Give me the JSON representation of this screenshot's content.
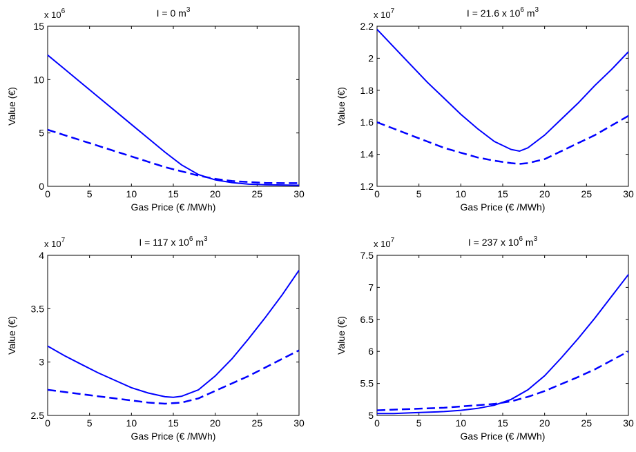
{
  "chart_data": [
    {
      "type": "line",
      "title": "I = 0 m",
      "title_sup": "3",
      "xlabel": "Gas Price (€ /MWh)",
      "ylabel": "Value (€)",
      "exponent_label": "x 10",
      "exponent_sup": "6",
      "scale": 1000000,
      "xlim": [
        0,
        30
      ],
      "ylim": [
        0,
        15
      ],
      "xticks": [
        "0",
        "5",
        "10",
        "15",
        "20",
        "25",
        "30"
      ],
      "yticks": [
        "0",
        "5",
        "10",
        "15"
      ],
      "series": [
        {
          "style": "solid",
          "x": [
            0,
            2,
            4,
            6,
            8,
            10,
            12,
            14,
            16,
            18,
            20,
            22,
            24,
            26,
            28,
            30
          ],
          "y": [
            12.3,
            11.0,
            9.7,
            8.4,
            7.1,
            5.8,
            4.5,
            3.2,
            2.0,
            1.1,
            0.6,
            0.35,
            0.2,
            0.15,
            0.12,
            0.1
          ]
        },
        {
          "style": "dashed",
          "x": [
            0,
            2,
            4,
            6,
            8,
            10,
            12,
            14,
            16,
            18,
            20,
            22,
            24,
            26,
            28,
            30
          ],
          "y": [
            5.3,
            4.8,
            4.3,
            3.8,
            3.3,
            2.8,
            2.3,
            1.8,
            1.4,
            1.0,
            0.7,
            0.5,
            0.4,
            0.32,
            0.3,
            0.3
          ]
        }
      ]
    },
    {
      "type": "line",
      "title": "I = 21.6 x 10",
      "title_sup": "6",
      "title_suffix": " m",
      "title_suffix_sup": "3",
      "xlabel": "Gas Price (€ /MWh)",
      "ylabel": "Value (€)",
      "exponent_label": "x 10",
      "exponent_sup": "7",
      "scale": 10000000,
      "xlim": [
        0,
        30
      ],
      "ylim": [
        1.2,
        2.2
      ],
      "xticks": [
        "0",
        "5",
        "10",
        "15",
        "20",
        "25",
        "30"
      ],
      "yticks": [
        "1.2",
        "1.4",
        "1.6",
        "1.8",
        "2",
        "2.2"
      ],
      "series": [
        {
          "style": "solid",
          "x": [
            0,
            2,
            4,
            6,
            8,
            10,
            12,
            14,
            16,
            17,
            18,
            20,
            22,
            24,
            26,
            28,
            30
          ],
          "y": [
            2.18,
            2.07,
            1.96,
            1.85,
            1.75,
            1.65,
            1.56,
            1.48,
            1.43,
            1.42,
            1.44,
            1.52,
            1.62,
            1.72,
            1.83,
            1.93,
            2.04
          ]
        },
        {
          "style": "dashed",
          "x": [
            0,
            2,
            4,
            6,
            8,
            10,
            12,
            14,
            16,
            17,
            18,
            20,
            22,
            24,
            26,
            28,
            30
          ],
          "y": [
            1.6,
            1.56,
            1.52,
            1.48,
            1.44,
            1.41,
            1.38,
            1.36,
            1.345,
            1.34,
            1.345,
            1.37,
            1.42,
            1.47,
            1.52,
            1.58,
            1.64
          ]
        }
      ]
    },
    {
      "type": "line",
      "title": "I = 117 x 10",
      "title_sup": "6",
      "title_suffix": " m",
      "title_suffix_sup": "3",
      "xlabel": "Gas Price (€ /MWh)",
      "ylabel": "Value (€)",
      "exponent_label": "x 10",
      "exponent_sup": "7",
      "scale": 10000000,
      "xlim": [
        0,
        30
      ],
      "ylim": [
        2.5,
        4
      ],
      "xticks": [
        "0",
        "5",
        "10",
        "15",
        "20",
        "25",
        "30"
      ],
      "yticks": [
        "2.5",
        "3",
        "3.5",
        "4"
      ],
      "series": [
        {
          "style": "solid",
          "x": [
            0,
            2,
            4,
            6,
            8,
            10,
            12,
            14,
            15,
            16,
            18,
            20,
            22,
            24,
            26,
            28,
            30
          ],
          "y": [
            3.15,
            3.06,
            2.98,
            2.9,
            2.83,
            2.76,
            2.71,
            2.675,
            2.67,
            2.68,
            2.74,
            2.87,
            3.03,
            3.22,
            3.42,
            3.63,
            3.86
          ]
        },
        {
          "style": "dashed",
          "x": [
            0,
            2,
            4,
            6,
            8,
            10,
            12,
            14,
            16,
            18,
            20,
            22,
            24,
            26,
            28,
            30
          ],
          "y": [
            2.74,
            2.72,
            2.7,
            2.68,
            2.66,
            2.64,
            2.62,
            2.61,
            2.62,
            2.66,
            2.73,
            2.8,
            2.87,
            2.95,
            3.03,
            3.11
          ]
        }
      ]
    },
    {
      "type": "line",
      "title": "I = 237 x 10",
      "title_sup": "6",
      "title_suffix": " m",
      "title_suffix_sup": "3",
      "xlabel": "Gas Price (€ /MWh)",
      "ylabel": "Value (€)",
      "exponent_label": "x 10",
      "exponent_sup": "7",
      "scale": 10000000,
      "xlim": [
        0,
        30
      ],
      "ylim": [
        5,
        7.5
      ],
      "xticks": [
        "0",
        "5",
        "10",
        "15",
        "20",
        "25",
        "30"
      ],
      "yticks": [
        "5",
        "5.5",
        "6",
        "6.5",
        "7",
        "7.5"
      ],
      "series": [
        {
          "style": "solid",
          "x": [
            0,
            2,
            4,
            6,
            8,
            10,
            12,
            14,
            16,
            18,
            20,
            22,
            24,
            26,
            28,
            30
          ],
          "y": [
            5.03,
            5.03,
            5.04,
            5.05,
            5.06,
            5.08,
            5.11,
            5.16,
            5.25,
            5.4,
            5.62,
            5.9,
            6.2,
            6.52,
            6.86,
            7.2
          ]
        },
        {
          "style": "dashed",
          "x": [
            0,
            2,
            4,
            6,
            8,
            10,
            12,
            14,
            16,
            18,
            20,
            22,
            24,
            26,
            28,
            30
          ],
          "y": [
            5.08,
            5.09,
            5.1,
            5.11,
            5.12,
            5.14,
            5.16,
            5.18,
            5.22,
            5.29,
            5.38,
            5.49,
            5.6,
            5.72,
            5.86,
            6.0
          ]
        }
      ]
    }
  ]
}
